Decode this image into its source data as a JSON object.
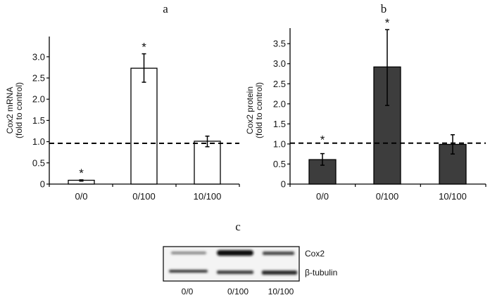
{
  "chart_data": [
    {
      "panel": "a",
      "type": "bar",
      "categories": [
        "0/0",
        "0/100",
        "10/100"
      ],
      "values": [
        0.09,
        2.73,
        1.01
      ],
      "error_low": [
        0.07,
        2.4,
        0.88
      ],
      "error_high": [
        0.1,
        3.07,
        1.13
      ],
      "significance": [
        "*",
        "*",
        ""
      ],
      "reference_line": 0.96,
      "ylabel_line1": "Cox2 mRNA",
      "ylabel_line2": "(fold to control)",
      "ylim": [
        0,
        3.4
      ],
      "yticks": [
        0,
        0.5,
        1.0,
        1.5,
        2.0,
        2.5,
        3.0
      ],
      "ytick_labels": [
        "0",
        "0.5",
        "1.0",
        "1.5",
        "2.0",
        "2.5",
        "3.0"
      ],
      "bar_color": "#ffffff"
    },
    {
      "panel": "b",
      "type": "bar",
      "categories": [
        "0/0",
        "0/100",
        "10/100"
      ],
      "values": [
        0.61,
        2.92,
        0.99
      ],
      "error_low": [
        0.47,
        1.96,
        0.75
      ],
      "error_high": [
        0.76,
        3.85,
        1.23
      ],
      "significance": [
        "*",
        "*",
        ""
      ],
      "reference_line": 1.02,
      "ylabel_line1": "Cox2 protein",
      "ylabel_line2": "(fold to control)",
      "ylim": [
        0,
        3.9
      ],
      "yticks": [
        0,
        0.5,
        1.0,
        1.5,
        2.0,
        2.5,
        3.0,
        3.5
      ],
      "ytick_labels": [
        "0",
        "0.5",
        "1.0",
        "1.5",
        "2.0",
        "2.5",
        "3.0",
        "3.5"
      ],
      "bar_color": "#3d3d3d"
    }
  ],
  "blot": {
    "panel": "c",
    "rows": [
      "Cox2",
      "β-tubulin"
    ],
    "lanes": [
      "0/0",
      "0/100",
      "10/100"
    ]
  }
}
